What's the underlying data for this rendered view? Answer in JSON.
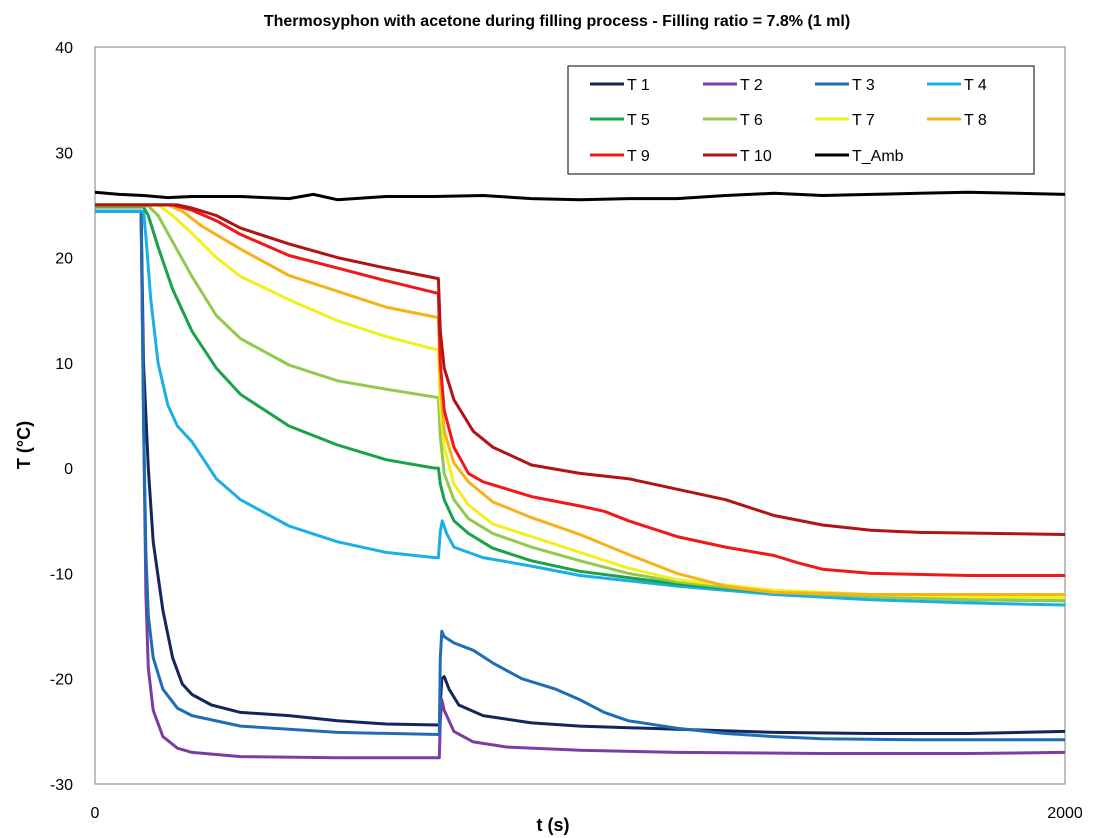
{
  "chart_data": {
    "type": "line",
    "title": "Thermosyphon  with acetone during filling process - Filling ratio = 7.8% (1 ml)",
    "xlabel": "t (s)",
    "ylabel": "T (°C)",
    "xlim": [
      0,
      2000
    ],
    "ylim": [
      -30,
      40
    ],
    "x_ticks": [
      "0",
      "2000"
    ],
    "y_ticks": [
      "-30",
      "-20",
      "-10",
      "0",
      "10",
      "20",
      "30",
      "40"
    ],
    "grid": false,
    "legend": "top-right",
    "series": [
      {
        "name": "T 1",
        "color": "#14275c",
        "points": [
          [
            0,
            24.4
          ],
          [
            95,
            24.4
          ],
          [
            100,
            10
          ],
          [
            110,
            0
          ],
          [
            120,
            -7
          ],
          [
            140,
            -13.5
          ],
          [
            160,
            -18
          ],
          [
            180,
            -20.5
          ],
          [
            200,
            -21.5
          ],
          [
            240,
            -22.5
          ],
          [
            300,
            -23.2
          ],
          [
            400,
            -23.5
          ],
          [
            500,
            -24
          ],
          [
            600,
            -24.3
          ],
          [
            710,
            -24.4
          ],
          [
            712,
            -22.5
          ],
          [
            715,
            -20
          ],
          [
            720,
            -19.8
          ],
          [
            730,
            -21
          ],
          [
            750,
            -22.5
          ],
          [
            800,
            -23.5
          ],
          [
            900,
            -24.2
          ],
          [
            1000,
            -24.5
          ],
          [
            1200,
            -24.8
          ],
          [
            1400,
            -25.1
          ],
          [
            1600,
            -25.2
          ],
          [
            1800,
            -25.2
          ],
          [
            2000,
            -25
          ]
        ]
      },
      {
        "name": "T 2",
        "color": "#7a3ea1",
        "points": [
          [
            0,
            24.4
          ],
          [
            95,
            24.4
          ],
          [
            100,
            5
          ],
          [
            105,
            -12
          ],
          [
            110,
            -19
          ],
          [
            120,
            -23
          ],
          [
            140,
            -25.5
          ],
          [
            170,
            -26.6
          ],
          [
            200,
            -27
          ],
          [
            300,
            -27.4
          ],
          [
            500,
            -27.5
          ],
          [
            710,
            -27.5
          ],
          [
            712,
            -24
          ],
          [
            715,
            -22
          ],
          [
            720,
            -23
          ],
          [
            740,
            -25
          ],
          [
            780,
            -26
          ],
          [
            850,
            -26.5
          ],
          [
            1000,
            -26.8
          ],
          [
            1200,
            -27
          ],
          [
            1500,
            -27.1
          ],
          [
            1800,
            -27.1
          ],
          [
            2000,
            -27
          ]
        ]
      },
      {
        "name": "T 3",
        "color": "#1f6eb4",
        "points": [
          [
            0,
            24.4
          ],
          [
            95,
            24.4
          ],
          [
            100,
            5
          ],
          [
            105,
            -8
          ],
          [
            110,
            -14
          ],
          [
            120,
            -18
          ],
          [
            140,
            -21
          ],
          [
            170,
            -22.8
          ],
          [
            200,
            -23.5
          ],
          [
            300,
            -24.5
          ],
          [
            500,
            -25.1
          ],
          [
            710,
            -25.3
          ],
          [
            712,
            -18
          ],
          [
            715,
            -15.5
          ],
          [
            720,
            -16
          ],
          [
            740,
            -16.6
          ],
          [
            780,
            -17.3
          ],
          [
            820,
            -18.5
          ],
          [
            880,
            -20
          ],
          [
            950,
            -21
          ],
          [
            1000,
            -22
          ],
          [
            1050,
            -23.2
          ],
          [
            1100,
            -24
          ],
          [
            1200,
            -24.7
          ],
          [
            1300,
            -25.2
          ],
          [
            1400,
            -25.5
          ],
          [
            1500,
            -25.7
          ],
          [
            1700,
            -25.8
          ],
          [
            2000,
            -25.8
          ]
        ]
      },
      {
        "name": "T 4",
        "color": "#1ab0e6",
        "points": [
          [
            0,
            24.4
          ],
          [
            100,
            24.4
          ],
          [
            105,
            22
          ],
          [
            115,
            16
          ],
          [
            130,
            10
          ],
          [
            150,
            6
          ],
          [
            170,
            4
          ],
          [
            200,
            2.5
          ],
          [
            250,
            -1
          ],
          [
            300,
            -3
          ],
          [
            400,
            -5.5
          ],
          [
            500,
            -7
          ],
          [
            600,
            -8
          ],
          [
            700,
            -8.5
          ],
          [
            708,
            -8.5
          ],
          [
            712,
            -6
          ],
          [
            716,
            -5
          ],
          [
            725,
            -6.2
          ],
          [
            740,
            -7.5
          ],
          [
            800,
            -8.5
          ],
          [
            900,
            -9.3
          ],
          [
            1000,
            -10.2
          ],
          [
            1200,
            -11.2
          ],
          [
            1400,
            -12
          ],
          [
            1600,
            -12.5
          ],
          [
            1800,
            -12.8
          ],
          [
            2000,
            -13
          ]
        ]
      },
      {
        "name": "T 5",
        "color": "#19a24a",
        "points": [
          [
            0,
            24.8
          ],
          [
            100,
            24.8
          ],
          [
            110,
            24
          ],
          [
            130,
            21
          ],
          [
            160,
            17
          ],
          [
            200,
            13
          ],
          [
            250,
            9.5
          ],
          [
            300,
            7
          ],
          [
            400,
            4
          ],
          [
            500,
            2.2
          ],
          [
            600,
            0.8
          ],
          [
            700,
            0
          ],
          [
            708,
            0
          ],
          [
            712,
            -1.5
          ],
          [
            720,
            -3
          ],
          [
            740,
            -5
          ],
          [
            770,
            -6.2
          ],
          [
            820,
            -7.6
          ],
          [
            900,
            -8.8
          ],
          [
            1000,
            -9.8
          ],
          [
            1200,
            -11
          ],
          [
            1400,
            -11.8
          ],
          [
            1600,
            -12.2
          ],
          [
            1800,
            -12.5
          ],
          [
            2000,
            -12.6
          ]
        ]
      },
      {
        "name": "T 6",
        "color": "#92c94f",
        "points": [
          [
            0,
            24.9
          ],
          [
            110,
            24.9
          ],
          [
            130,
            24
          ],
          [
            160,
            21.5
          ],
          [
            200,
            18.2
          ],
          [
            250,
            14.5
          ],
          [
            300,
            12.3
          ],
          [
            400,
            9.8
          ],
          [
            500,
            8.3
          ],
          [
            600,
            7.5
          ],
          [
            708,
            6.7
          ],
          [
            712,
            3
          ],
          [
            720,
            -0.5
          ],
          [
            740,
            -3
          ],
          [
            770,
            -4.8
          ],
          [
            820,
            -6.2
          ],
          [
            900,
            -7.5
          ],
          [
            1000,
            -8.8
          ],
          [
            1100,
            -10
          ],
          [
            1200,
            -10.8
          ],
          [
            1400,
            -11.8
          ],
          [
            1600,
            -12.2
          ],
          [
            1800,
            -12.5
          ],
          [
            2000,
            -12.6
          ]
        ]
      },
      {
        "name": "T 7",
        "color": "#f2ef1f",
        "points": [
          [
            0,
            25
          ],
          [
            130,
            25
          ],
          [
            160,
            24
          ],
          [
            200,
            22.3
          ],
          [
            250,
            20
          ],
          [
            300,
            18.2
          ],
          [
            400,
            16
          ],
          [
            500,
            14
          ],
          [
            600,
            12.5
          ],
          [
            708,
            11.2
          ],
          [
            712,
            6
          ],
          [
            720,
            2
          ],
          [
            740,
            -1.5
          ],
          [
            770,
            -3.5
          ],
          [
            820,
            -5.3
          ],
          [
            900,
            -6.5
          ],
          [
            1000,
            -8
          ],
          [
            1100,
            -9.5
          ],
          [
            1200,
            -10.6
          ],
          [
            1400,
            -11.6
          ],
          [
            1600,
            -12
          ],
          [
            1800,
            -12.2
          ],
          [
            2000,
            -12.3
          ]
        ]
      },
      {
        "name": "T 8",
        "color": "#f5b21b",
        "points": [
          [
            0,
            25
          ],
          [
            150,
            25
          ],
          [
            180,
            24.4
          ],
          [
            220,
            23
          ],
          [
            300,
            20.8
          ],
          [
            400,
            18.3
          ],
          [
            500,
            16.8
          ],
          [
            600,
            15.3
          ],
          [
            708,
            14.3
          ],
          [
            712,
            8
          ],
          [
            720,
            3.5
          ],
          [
            740,
            0.5
          ],
          [
            770,
            -1.3
          ],
          [
            820,
            -3.2
          ],
          [
            900,
            -4.7
          ],
          [
            1000,
            -6.3
          ],
          [
            1100,
            -8.2
          ],
          [
            1200,
            -10
          ],
          [
            1300,
            -11.2
          ],
          [
            1400,
            -11.8
          ],
          [
            1600,
            -12
          ],
          [
            1800,
            -12
          ],
          [
            2000,
            -12
          ]
        ]
      },
      {
        "name": "T 9",
        "color": "#f01818",
        "points": [
          [
            0,
            25
          ],
          [
            160,
            25
          ],
          [
            200,
            24.5
          ],
          [
            250,
            23.5
          ],
          [
            300,
            22.2
          ],
          [
            400,
            20.2
          ],
          [
            500,
            19
          ],
          [
            600,
            17.8
          ],
          [
            708,
            16.6
          ],
          [
            712,
            10
          ],
          [
            720,
            5.5
          ],
          [
            740,
            2
          ],
          [
            770,
            -0.5
          ],
          [
            800,
            -1.3
          ],
          [
            900,
            -2.7
          ],
          [
            1000,
            -3.6
          ],
          [
            1050,
            -4.1
          ],
          [
            1100,
            -5
          ],
          [
            1200,
            -6.5
          ],
          [
            1300,
            -7.5
          ],
          [
            1400,
            -8.3
          ],
          [
            1450,
            -9
          ],
          [
            1500,
            -9.6
          ],
          [
            1600,
            -10
          ],
          [
            1800,
            -10.2
          ],
          [
            2000,
            -10.2
          ]
        ]
      },
      {
        "name": "T 10",
        "color": "#b01414",
        "points": [
          [
            0,
            25
          ],
          [
            170,
            25
          ],
          [
            200,
            24.7
          ],
          [
            250,
            24
          ],
          [
            300,
            22.8
          ],
          [
            400,
            21.3
          ],
          [
            500,
            20
          ],
          [
            600,
            19
          ],
          [
            708,
            18
          ],
          [
            712,
            13
          ],
          [
            720,
            9.5
          ],
          [
            740,
            6.5
          ],
          [
            780,
            3.5
          ],
          [
            820,
            2
          ],
          [
            900,
            0.3
          ],
          [
            1000,
            -0.5
          ],
          [
            1100,
            -1
          ],
          [
            1200,
            -2
          ],
          [
            1300,
            -3
          ],
          [
            1400,
            -4.5
          ],
          [
            1500,
            -5.4
          ],
          [
            1600,
            -5.9
          ],
          [
            1700,
            -6.1
          ],
          [
            2000,
            -6.3
          ]
        ]
      },
      {
        "name": "T_Amb",
        "color": "#000000",
        "points": [
          [
            0,
            26.2
          ],
          [
            50,
            26
          ],
          [
            100,
            25.9
          ],
          [
            150,
            25.7
          ],
          [
            200,
            25.8
          ],
          [
            300,
            25.8
          ],
          [
            400,
            25.6
          ],
          [
            450,
            26
          ],
          [
            500,
            25.5
          ],
          [
            600,
            25.8
          ],
          [
            700,
            25.8
          ],
          [
            800,
            25.9
          ],
          [
            900,
            25.6
          ],
          [
            1000,
            25.5
          ],
          [
            1100,
            25.6
          ],
          [
            1200,
            25.6
          ],
          [
            1300,
            25.9
          ],
          [
            1400,
            26.1
          ],
          [
            1500,
            25.9
          ],
          [
            1600,
            26
          ],
          [
            1700,
            26.1
          ],
          [
            1800,
            26.2
          ],
          [
            1900,
            26.1
          ],
          [
            2000,
            26
          ]
        ]
      }
    ]
  }
}
